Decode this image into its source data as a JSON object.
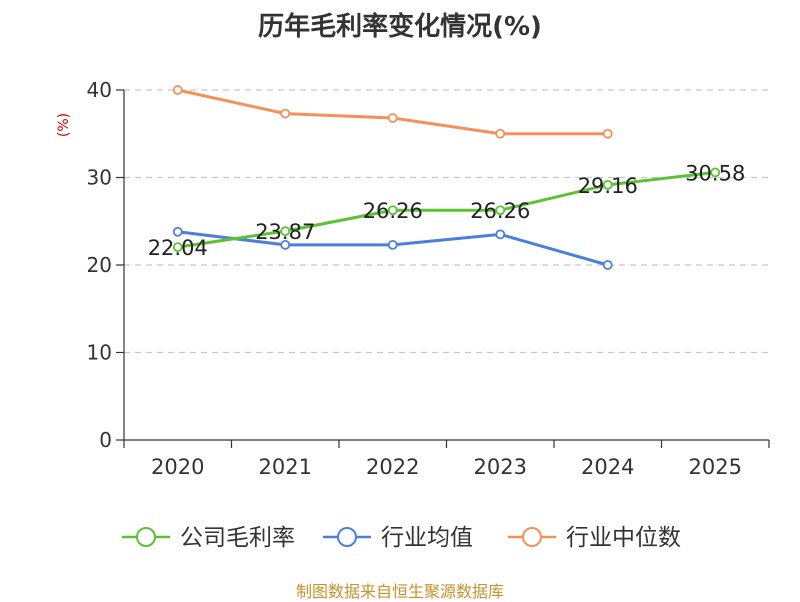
{
  "chart_data": {
    "type": "line",
    "title": "历年毛利率变化情况(%)",
    "ylabel": "(%)",
    "xlabel": "",
    "categories": [
      "2020",
      "2021",
      "2022",
      "2023",
      "2024",
      "2025"
    ],
    "ylim": [
      0,
      40
    ],
    "yticks": [
      "0",
      "10",
      "20",
      "30",
      "40"
    ],
    "grid": "horizontal-dashed",
    "legend": "bottom",
    "series": [
      {
        "name": "公司毛利率",
        "color": "#5cc234",
        "values": [
          22.04,
          23.87,
          26.26,
          26.26,
          29.16,
          30.58
        ],
        "labels": [
          "22.04",
          "23.87",
          "26.26",
          "26.26",
          "29.16",
          "30.58"
        ]
      },
      {
        "name": "行业均值",
        "color": "#4c7fdb",
        "values": [
          23.8,
          22.3,
          22.3,
          23.5,
          20.0,
          null
        ]
      },
      {
        "name": "行业中位数",
        "color": "#f5905a",
        "values": [
          40.0,
          37.3,
          36.8,
          35.0,
          35.0,
          null
        ]
      }
    ]
  },
  "source": "制图数据来自恒生聚源数据库"
}
